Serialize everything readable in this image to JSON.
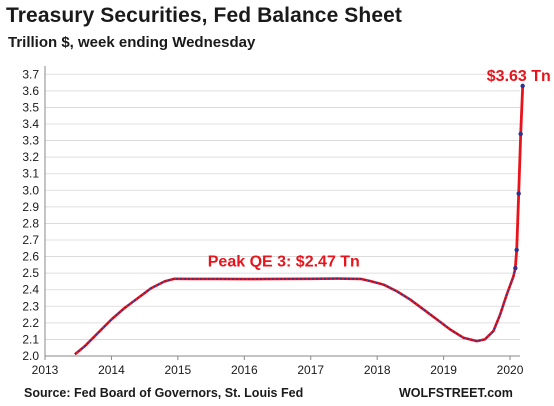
{
  "chart_data": {
    "type": "line",
    "title": "Treasury Securities, Fed Balance Sheet",
    "subtitle": "Trillion $, week ending Wednesday",
    "source": "Source: Fed Board of Governors, St. Louis Fed",
    "brand": "WOLFSTREET.com",
    "xlim": [
      2013,
      2020.15
    ],
    "ylim": [
      2.0,
      3.75
    ],
    "x_ticks": [
      2013,
      2014,
      2015,
      2016,
      2017,
      2018,
      2019,
      2020
    ],
    "x_tick_labels": [
      "2013",
      "2014",
      "2015",
      "2016",
      "2017",
      "2018",
      "2019",
      "2020"
    ],
    "y_ticks": [
      2.0,
      2.1,
      2.2,
      2.3,
      2.4,
      2.5,
      2.6,
      2.7,
      2.8,
      2.9,
      3.0,
      3.1,
      3.2,
      3.3,
      3.4,
      3.5,
      3.6,
      3.7
    ],
    "y_tick_labels": [
      "2.0",
      "2.1",
      "2.2",
      "2.3",
      "2.4",
      "2.5",
      "2.6",
      "2.7",
      "2.8",
      "2.9",
      "3.0",
      "3.1",
      "3.2",
      "3.3",
      "3.4",
      "3.5",
      "3.6",
      "3.7"
    ],
    "grid": true,
    "series": [
      {
        "color": "#2e3192",
        "points": [
          [
            2013.45,
            2.01
          ],
          [
            2013.6,
            2.06
          ],
          [
            2013.8,
            2.14
          ],
          [
            2014.0,
            2.22
          ],
          [
            2014.2,
            2.29
          ],
          [
            2014.4,
            2.35
          ],
          [
            2014.6,
            2.41
          ],
          [
            2014.8,
            2.45
          ],
          [
            2014.95,
            2.466
          ],
          [
            2015.2,
            2.465
          ],
          [
            2015.6,
            2.465
          ],
          [
            2016.0,
            2.464
          ],
          [
            2016.5,
            2.465
          ],
          [
            2017.0,
            2.466
          ],
          [
            2017.4,
            2.467
          ],
          [
            2017.75,
            2.465
          ],
          [
            2017.9,
            2.452
          ],
          [
            2018.1,
            2.43
          ],
          [
            2018.3,
            2.39
          ],
          [
            2018.5,
            2.34
          ],
          [
            2018.7,
            2.28
          ],
          [
            2018.9,
            2.22
          ],
          [
            2019.1,
            2.16
          ],
          [
            2019.3,
            2.11
          ],
          [
            2019.5,
            2.09
          ],
          [
            2019.62,
            2.1
          ],
          [
            2019.75,
            2.15
          ],
          [
            2019.85,
            2.25
          ],
          [
            2019.95,
            2.37
          ],
          [
            2020.05,
            2.48
          ],
          [
            2020.08,
            2.53
          ],
          [
            2020.1,
            2.64
          ],
          [
            2020.13,
            2.98
          ],
          [
            2020.16,
            3.34
          ],
          [
            2020.19,
            3.63
          ]
        ]
      }
    ],
    "highlight_from_x": 2020.08,
    "highlight_color": "#e8141b",
    "annotations": [
      {
        "text": "Peak QE 3: $2.47 Tn",
        "x": 2015.45,
        "y": 2.54
      },
      {
        "text": "$3.63 Tn",
        "x": 2019.65,
        "y": 3.66
      }
    ]
  }
}
